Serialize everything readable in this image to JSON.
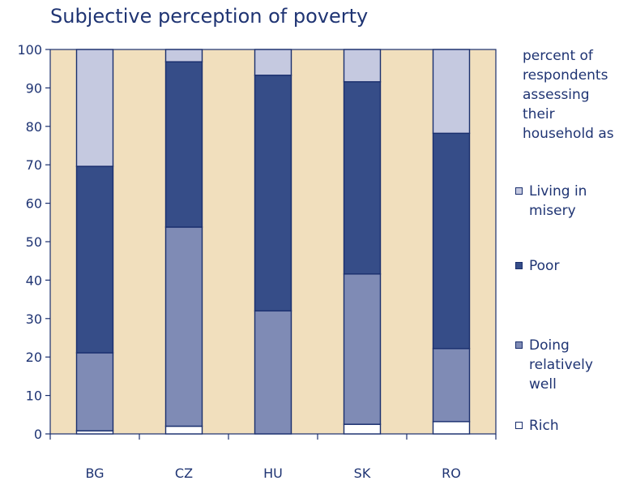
{
  "chart_data": {
    "type": "bar",
    "stacked": true,
    "title": "Subjective perception of poverty",
    "legend_title": "percent of respondents assessing their household as",
    "categories": [
      "BG",
      "CZ",
      "HU",
      "SK",
      "RO"
    ],
    "ylim": [
      0,
      100
    ],
    "yticks": [
      "0",
      "10",
      "20",
      "30",
      "40",
      "50",
      "60",
      "70",
      "80",
      "90",
      "100"
    ],
    "grid": false,
    "legend_position": "right",
    "series": [
      {
        "name": "Rich",
        "color": "#ffffff",
        "values": [
          0.8,
          2.0,
          0.0,
          2.5,
          3.2
        ]
      },
      {
        "name": "Doing relatively well",
        "color": "#7f8bb5",
        "values": [
          20.3,
          51.8,
          32.0,
          39.1,
          19.0
        ]
      },
      {
        "name": "Poor",
        "color": "#364d88",
        "values": [
          48.5,
          43.0,
          61.3,
          50.0,
          56.0
        ]
      },
      {
        "name": "Living in misery",
        "color": "#c5c9e0",
        "values": [
          30.4,
          3.2,
          6.7,
          8.4,
          21.8
        ]
      }
    ],
    "background_color": "#f1dfbd"
  },
  "legend_entries_top_to_bottom": [
    "Living in misery",
    "Poor",
    "Doing relatively well",
    "Rich"
  ]
}
